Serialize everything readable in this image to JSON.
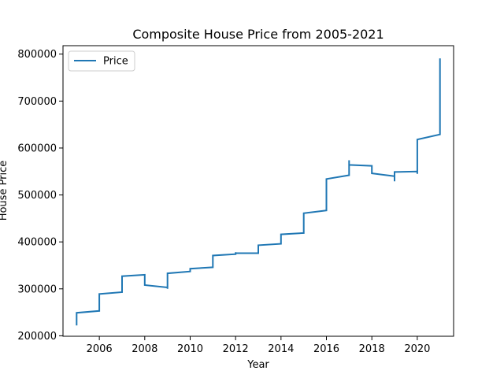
{
  "chart_data": {
    "type": "line",
    "title": "Composite House Price from 2005-2021",
    "xlabel": "Year",
    "ylabel": "House Price",
    "xlim": [
      2004.4,
      2021.6
    ],
    "ylim": [
      199000,
      818000
    ],
    "xticks": [
      2006,
      2008,
      2010,
      2012,
      2014,
      2016,
      2018,
      2020
    ],
    "xtick_labels": [
      "2006",
      "2008",
      "2010",
      "2012",
      "2014",
      "2016",
      "2018",
      "2020"
    ],
    "yticks": [
      200000,
      300000,
      400000,
      500000,
      600000,
      700000,
      800000
    ],
    "ytick_labels": [
      "200000",
      "300000",
      "400000",
      "500000",
      "600000",
      "700000",
      "800000"
    ],
    "grid": false,
    "legend_position": "upper-left",
    "series": [
      {
        "name": "Price",
        "color": "#1f77b4",
        "x": [
          2005.0,
          2005.0,
          2005.0,
          2006.0,
          2006.0,
          2007.0,
          2007.0,
          2008.0,
          2008.0,
          2008.0,
          2009.0,
          2009.0,
          2009.0,
          2010.0,
          2010.0,
          2011.0,
          2011.0,
          2012.0,
          2012.0,
          2012.0,
          2013.0,
          2013.0,
          2014.0,
          2014.0,
          2015.0,
          2015.0,
          2016.0,
          2016.0,
          2017.0,
          2017.0,
          2017.0,
          2018.0,
          2018.0,
          2019.0,
          2019.0,
          2019.0,
          2020.0,
          2020.0,
          2020.0,
          2021.0,
          2021.0
        ],
        "y": [
          222000,
          249000,
          249000,
          253000,
          289000,
          293000,
          327000,
          330000,
          323000,
          308000,
          303000,
          300000,
          333000,
          337000,
          343000,
          346000,
          371000,
          374000,
          378000,
          376000,
          376000,
          393000,
          396000,
          416000,
          419000,
          461000,
          467000,
          534000,
          542000,
          574000,
          564000,
          562000,
          546000,
          540000,
          529000,
          549000,
          550000,
          545000,
          618000,
          629000,
          791000
        ]
      }
    ]
  }
}
